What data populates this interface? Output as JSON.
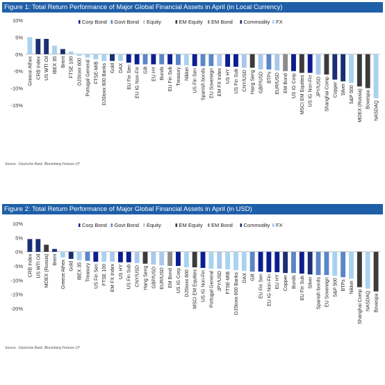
{
  "colors": {
    "title_bg": "#1f5fa8",
    "Corp Bond": "#0b1f8f",
    "Govt Bond": "#5b86c8",
    "Equity": "#a9d2ef",
    "EM Equity": "#3b3b3b",
    "EM Bond": "#8c8c8c",
    "Commodity": "#1a2f73",
    "FX": "#a9c8ec"
  },
  "legend": [
    "Corp Bond",
    "Govt Bond",
    "Equity",
    "EM Equity",
    "EM Bond",
    "Commodity",
    "FX"
  ],
  "chart_data": [
    {
      "type": "bar",
      "title": "Figure 1: Total Return Performance of Major Global Financial Assets in April (in Local Currency)",
      "source": "Source : Deutsche Bank, Bloomberg Finance LP",
      "ylim": [
        -15,
        10
      ],
      "yticks": [
        10,
        5,
        0,
        -5,
        -10,
        -15
      ],
      "ytick_labels": [
        "10%",
        "5%",
        "0%",
        "-5%",
        "-10%",
        "-15%"
      ],
      "grid": false,
      "legend_position": "top",
      "categories": [
        "Greece Athex",
        "CRB Index",
        "US WTI Oil",
        "IBEX 35",
        "Brent",
        "FTSE 100",
        "DJStoxx 600",
        "Portugal General",
        "FTSE-MIB",
        "DJStoxx 600 Banks",
        "Gold",
        "DAX",
        "EU Fin Sen",
        "EU IG Non-Fin",
        "Gilt",
        "EU HY",
        "Bunds",
        "EU Fin Sub",
        "Treasury",
        "Nikkei",
        "US Fin Sen",
        "Spanish bonds",
        "EU Sovereign",
        "EM FX Index",
        "US HY",
        "US Fin Sub",
        "CNY/USD",
        "Hang Seng",
        "GBP/USD",
        "BTPs",
        "EUR/USD",
        "EM Bond",
        "US IG Corp",
        "MSCI EM Equities",
        "US IG Non-Fin",
        "JPY/USD",
        "Shanghai Comp",
        "Copper",
        "Silver",
        "S&P 500",
        "MOEX (Russia)",
        "Bovespa",
        "NASDAQ"
      ],
      "values": [
        5.0,
        4.5,
        4.5,
        2.5,
        1.5,
        0.8,
        -0.5,
        -1.0,
        -1.5,
        -2.0,
        -2.0,
        -2.0,
        -2.5,
        -3.0,
        -3.0,
        -3.0,
        -3.0,
        -3.0,
        -3.2,
        -3.3,
        -3.5,
        -3.5,
        -3.5,
        -3.5,
        -3.7,
        -3.7,
        -4.0,
        -4.0,
        -4.5,
        -4.5,
        -4.8,
        -5.0,
        -5.0,
        -5.5,
        -5.5,
        -6.0,
        -6.0,
        -7.5,
        -8.0,
        -8.5,
        -9.5,
        -10.0,
        -13.0
      ],
      "asset_class": [
        "Equity",
        "Commodity",
        "Commodity",
        "Equity",
        "Commodity",
        "Equity",
        "Equity",
        "Equity",
        "Equity",
        "Equity",
        "Commodity",
        "Equity",
        "Corp Bond",
        "Corp Bond",
        "Govt Bond",
        "Corp Bond",
        "Govt Bond",
        "Corp Bond",
        "Govt Bond",
        "Equity",
        "Corp Bond",
        "Govt Bond",
        "Govt Bond",
        "FX",
        "Corp Bond",
        "Corp Bond",
        "FX",
        "EM Equity",
        "FX",
        "Govt Bond",
        "FX",
        "EM Bond",
        "Corp Bond",
        "EM Equity",
        "Corp Bond",
        "FX",
        "EM Equity",
        "Commodity",
        "Commodity",
        "Equity",
        "EM Equity",
        "EM Equity",
        "Equity"
      ]
    },
    {
      "type": "bar",
      "title": "Figure 2: Total Return Performance of Major Global Financial Assets in April (in USD)",
      "source": "Source : Deutsche Bank, Bloomberg Finance LP",
      "ylim": [
        -20,
        10
      ],
      "yticks": [
        10,
        5,
        0,
        -5,
        -10,
        -15,
        -20
      ],
      "ytick_labels": [
        "10%",
        "5%",
        "0%",
        "-5%",
        "-10%",
        "-15%",
        "-20%"
      ],
      "grid": false,
      "legend_position": "top",
      "categories": [
        "CRB Index",
        "US WTI Oil",
        "MOEX (Russia)",
        "Brent",
        "Greece Athex",
        "Gold",
        "IBEX 35",
        "Treasury",
        "US Fin Sen",
        "FTSE 100",
        "EM FX Index",
        "US HY",
        "US Fin Sub",
        "CNY/USD",
        "Hang Seng",
        "GBP/USD",
        "EUR/USD",
        "EM Bond",
        "US IG Corp",
        "DJStoxx 600",
        "MSCI EM Equities",
        "US IG Non-Fin",
        "Portugal General",
        "JPY/USD",
        "FTSE-MIB",
        "DJStoxx 600 Banks",
        "DAX",
        "Gilt",
        "EU Fin Sen",
        "EU IG Non-Fin",
        "EU HY",
        "Copper",
        "Bunds",
        "EU Fin Sub",
        "Silver",
        "Spanish bonds",
        "EU Sovereign",
        "S&P 500",
        "BTPs",
        "Nikkei",
        "Shanghai Comp",
        "NASDAQ",
        "Bovespa"
      ],
      "values": [
        4.5,
        4.5,
        2.5,
        1.0,
        -2.0,
        -2.5,
        -3.0,
        -3.2,
        -3.5,
        -3.5,
        -3.5,
        -3.7,
        -3.7,
        -4.0,
        -4.2,
        -4.5,
        -4.8,
        -5.0,
        -5.0,
        -5.5,
        -5.5,
        -5.7,
        -6.0,
        -6.0,
        -6.2,
        -6.5,
        -6.7,
        -7.0,
        -7.0,
        -7.2,
        -7.2,
        -7.5,
        -7.5,
        -7.7,
        -8.0,
        -8.2,
        -8.2,
        -8.5,
        -9.0,
        -9.5,
        -12.5,
        -13.0,
        -14.0
      ],
      "asset_class": [
        "Commodity",
        "Commodity",
        "EM Equity",
        "Commodity",
        "Equity",
        "Commodity",
        "Equity",
        "Govt Bond",
        "Corp Bond",
        "Equity",
        "FX",
        "Corp Bond",
        "Corp Bond",
        "FX",
        "EM Equity",
        "FX",
        "FX",
        "EM Bond",
        "Corp Bond",
        "Equity",
        "EM Equity",
        "Corp Bond",
        "Equity",
        "FX",
        "Equity",
        "Equity",
        "Equity",
        "Govt Bond",
        "Corp Bond",
        "Corp Bond",
        "Corp Bond",
        "Commodity",
        "Govt Bond",
        "Corp Bond",
        "Commodity",
        "Govt Bond",
        "Govt Bond",
        "Equity",
        "Govt Bond",
        "Equity",
        "EM Equity",
        "Equity",
        "EM Equity"
      ]
    }
  ]
}
